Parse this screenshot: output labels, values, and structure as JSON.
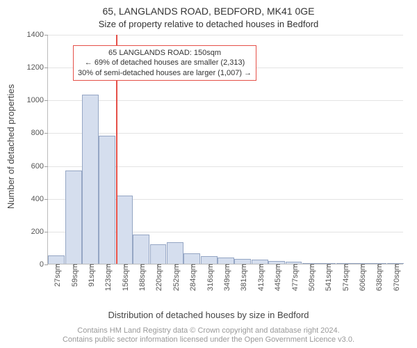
{
  "title": "65, LANGLANDS ROAD, BEDFORD, MK41 0GE",
  "subtitle": "Size of property relative to detached houses in Bedford",
  "ylabel": "Number of detached properties",
  "xlabel": "Distribution of detached houses by size in Bedford",
  "credits_line1": "Contains HM Land Registry data © Crown copyright and database right 2024.",
  "credits_line2": "Contains public sector information licensed under the Open Government Licence v3.0.",
  "title_fontsize": 14,
  "subtitle_fontsize": 13,
  "axis_label_fontsize": 13,
  "tick_fontsize": 11,
  "credits_fontsize": 11,
  "annotation_fontsize": 11,
  "background_color": "#ffffff",
  "grid_color": "#e3e3e3",
  "axis_color": "#bcbcbc",
  "text_color": "#333333",
  "bar_fill": "#d5deee",
  "bar_stroke": "#95a6c4",
  "marker_color": "#e55048",
  "annotation_border": "#e55048",
  "ylim": [
    0,
    1400
  ],
  "ytick_step": 200,
  "yticks": [
    0,
    200,
    400,
    600,
    800,
    1000,
    1200,
    1400
  ],
  "marker_x_index": 4,
  "categories": [
    "27sqm",
    "59sqm",
    "91sqm",
    "123sqm",
    "156sqm",
    "188sqm",
    "220sqm",
    "252sqm",
    "284sqm",
    "316sqm",
    "349sqm",
    "381sqm",
    "413sqm",
    "445sqm",
    "477sqm",
    "509sqm",
    "541sqm",
    "574sqm",
    "606sqm",
    "638sqm",
    "670sqm"
  ],
  "values": [
    50,
    570,
    1030,
    780,
    415,
    180,
    120,
    130,
    65,
    45,
    40,
    30,
    25,
    18,
    12,
    3,
    3,
    3,
    3,
    3,
    3
  ],
  "bar_width_ratio": 0.98,
  "annotation": {
    "line1": "65 LANGLANDS ROAD: 150sqm",
    "line2": "← 69% of detached houses are smaller (2,313)",
    "line3": "30% of semi-detached houses are larger (1,007) →"
  }
}
